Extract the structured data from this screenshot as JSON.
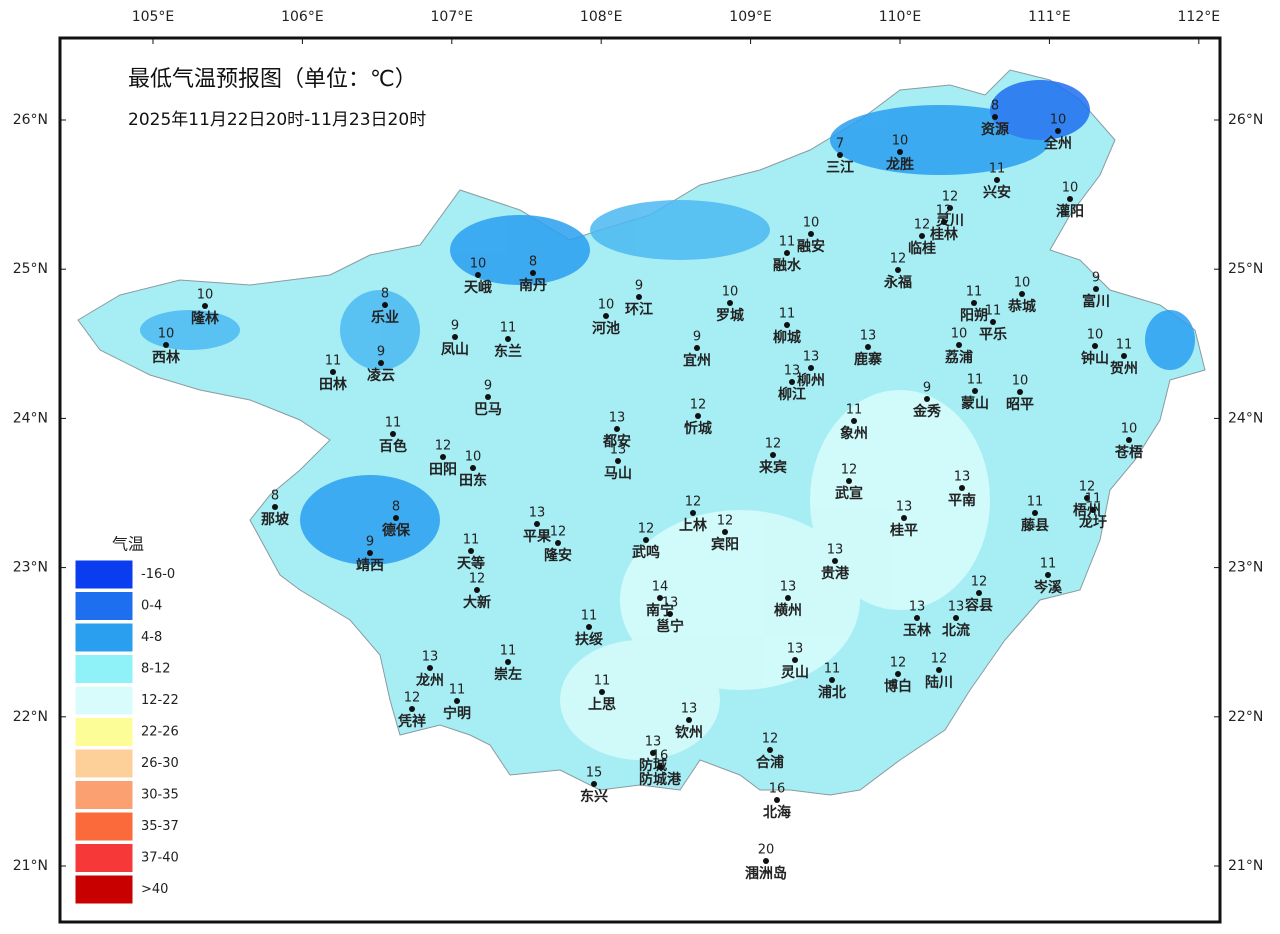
{
  "title": "最低气温预报图（单位：℃）",
  "subtitle": "2025年11月22日20时-11月23日20时",
  "longitude_labels": [
    "105°E",
    "106°E",
    "107°E",
    "108°E",
    "109°E",
    "110°E",
    "111°E",
    "112°E"
  ],
  "latitude_labels": [
    "26°N",
    "25°N",
    "24°N",
    "23°N",
    "22°N",
    "21°N"
  ],
  "legend": {
    "title": "气温",
    "items": [
      {
        "label": "-16-0",
        "color": "#0a3df0"
      },
      {
        "label": "0-4",
        "color": "#1e6ff0"
      },
      {
        "label": "4-8",
        "color": "#2a9ff0"
      },
      {
        "label": "8-12",
        "color": "#8ef2f8"
      },
      {
        "label": "12-22",
        "color": "#d8fcfc"
      },
      {
        "label": "22-26",
        "color": "#fdfd98"
      },
      {
        "label": "26-30",
        "color": "#fdd09a"
      },
      {
        "label": "30-35",
        "color": "#fba070"
      },
      {
        "label": "35-37",
        "color": "#fb6a3a"
      },
      {
        "label": "37-40",
        "color": "#f73838"
      },
      {
        "label": ">40",
        "color": "#c80000"
      }
    ]
  },
  "stations": [
    {
      "name": "资源",
      "value": 8
    },
    {
      "name": "全州",
      "value": 10
    },
    {
      "name": "三江",
      "value": 7
    },
    {
      "name": "龙胜",
      "value": 10
    },
    {
      "name": "兴安",
      "value": 11
    },
    {
      "name": "灌阳",
      "value": 10
    },
    {
      "name": "灵川",
      "value": 12
    },
    {
      "name": "桂林",
      "value": 12
    },
    {
      "name": "临桂",
      "value": 12
    },
    {
      "name": "融安",
      "value": 10
    },
    {
      "name": "融水",
      "value": 11
    },
    {
      "name": "永福",
      "value": 12
    },
    {
      "name": "恭城",
      "value": 10
    },
    {
      "name": "富川",
      "value": 9
    },
    {
      "name": "天峨",
      "value": 10
    },
    {
      "name": "南丹",
      "value": 8
    },
    {
      "name": "隆林",
      "value": 10
    },
    {
      "name": "乐业",
      "value": 8
    },
    {
      "name": "西林",
      "value": 10
    },
    {
      "name": "环江",
      "value": 9
    },
    {
      "name": "河池",
      "value": 10
    },
    {
      "name": "罗城",
      "value": 10
    },
    {
      "name": "阳朔",
      "value": 11
    },
    {
      "name": "平乐",
      "value": 11
    },
    {
      "name": "凤山",
      "value": 9
    },
    {
      "name": "东兰",
      "value": 11
    },
    {
      "name": "宜州",
      "value": 9
    },
    {
      "name": "柳城",
      "value": 11
    },
    {
      "name": "鹿寨",
      "value": 13
    },
    {
      "name": "荔浦",
      "value": 10
    },
    {
      "name": "钟山",
      "value": 10
    },
    {
      "name": "贺州",
      "value": 11
    },
    {
      "name": "田林",
      "value": 11
    },
    {
      "name": "凌云",
      "value": 9
    },
    {
      "name": "柳州",
      "value": 13
    },
    {
      "name": "柳江",
      "value": 13
    },
    {
      "name": "蒙山",
      "value": 11
    },
    {
      "name": "昭平",
      "value": 10
    },
    {
      "name": "金秀",
      "value": 9
    },
    {
      "name": "巴马",
      "value": 9
    },
    {
      "name": "都安",
      "value": 13
    },
    {
      "name": "忻城",
      "value": 12
    },
    {
      "name": "象州",
      "value": 11
    },
    {
      "name": "苍梧",
      "value": 10
    },
    {
      "name": "百色",
      "value": 11
    },
    {
      "name": "田阳",
      "value": 12
    },
    {
      "name": "田东",
      "value": 10
    },
    {
      "name": "马山",
      "value": 13
    },
    {
      "name": "来宾",
      "value": 12
    },
    {
      "name": "武宣",
      "value": 12
    },
    {
      "name": "平南",
      "value": 13
    },
    {
      "name": "那坡",
      "value": 8
    },
    {
      "name": "德保",
      "value": 8
    },
    {
      "name": "平果",
      "value": 13
    },
    {
      "name": "隆安",
      "value": 12
    },
    {
      "name": "上林",
      "value": 12
    },
    {
      "name": "宾阳",
      "value": 12
    },
    {
      "name": "桂平",
      "value": 13
    },
    {
      "name": "藤县",
      "value": 11
    },
    {
      "name": "梧州",
      "value": 12
    },
    {
      "name": "龙圩",
      "value": 11
    },
    {
      "name": "靖西",
      "value": 9
    },
    {
      "name": "天等",
      "value": 11
    },
    {
      "name": "武鸣",
      "value": 12
    },
    {
      "name": "贵港",
      "value": 13
    },
    {
      "name": "岑溪",
      "value": 11
    },
    {
      "name": "大新",
      "value": 12
    },
    {
      "name": "南宁",
      "value": 14
    },
    {
      "name": "邕宁",
      "value": 13
    },
    {
      "name": "横州",
      "value": 13
    },
    {
      "name": "容县",
      "value": 12
    },
    {
      "name": "玉林",
      "value": 13
    },
    {
      "name": "北流",
      "value": 13
    },
    {
      "name": "扶绥",
      "value": 11
    },
    {
      "name": "崇左",
      "value": 11
    },
    {
      "name": "龙州",
      "value": 13
    },
    {
      "name": "灵山",
      "value": 13
    },
    {
      "name": "浦北",
      "value": 11
    },
    {
      "name": "博白",
      "value": 12
    },
    {
      "name": "陆川",
      "value": 12
    },
    {
      "name": "凭祥",
      "value": 12
    },
    {
      "name": "宁明",
      "value": 11
    },
    {
      "name": "上思",
      "value": 11
    },
    {
      "name": "钦州",
      "value": 13
    },
    {
      "name": "合浦",
      "value": 12
    },
    {
      "name": "防城",
      "value": 13
    },
    {
      "name": "防城港",
      "value": 16
    },
    {
      "name": "东兴",
      "value": 15
    },
    {
      "name": "北海",
      "value": 16
    },
    {
      "name": "涠洲岛",
      "value": 20
    }
  ]
}
